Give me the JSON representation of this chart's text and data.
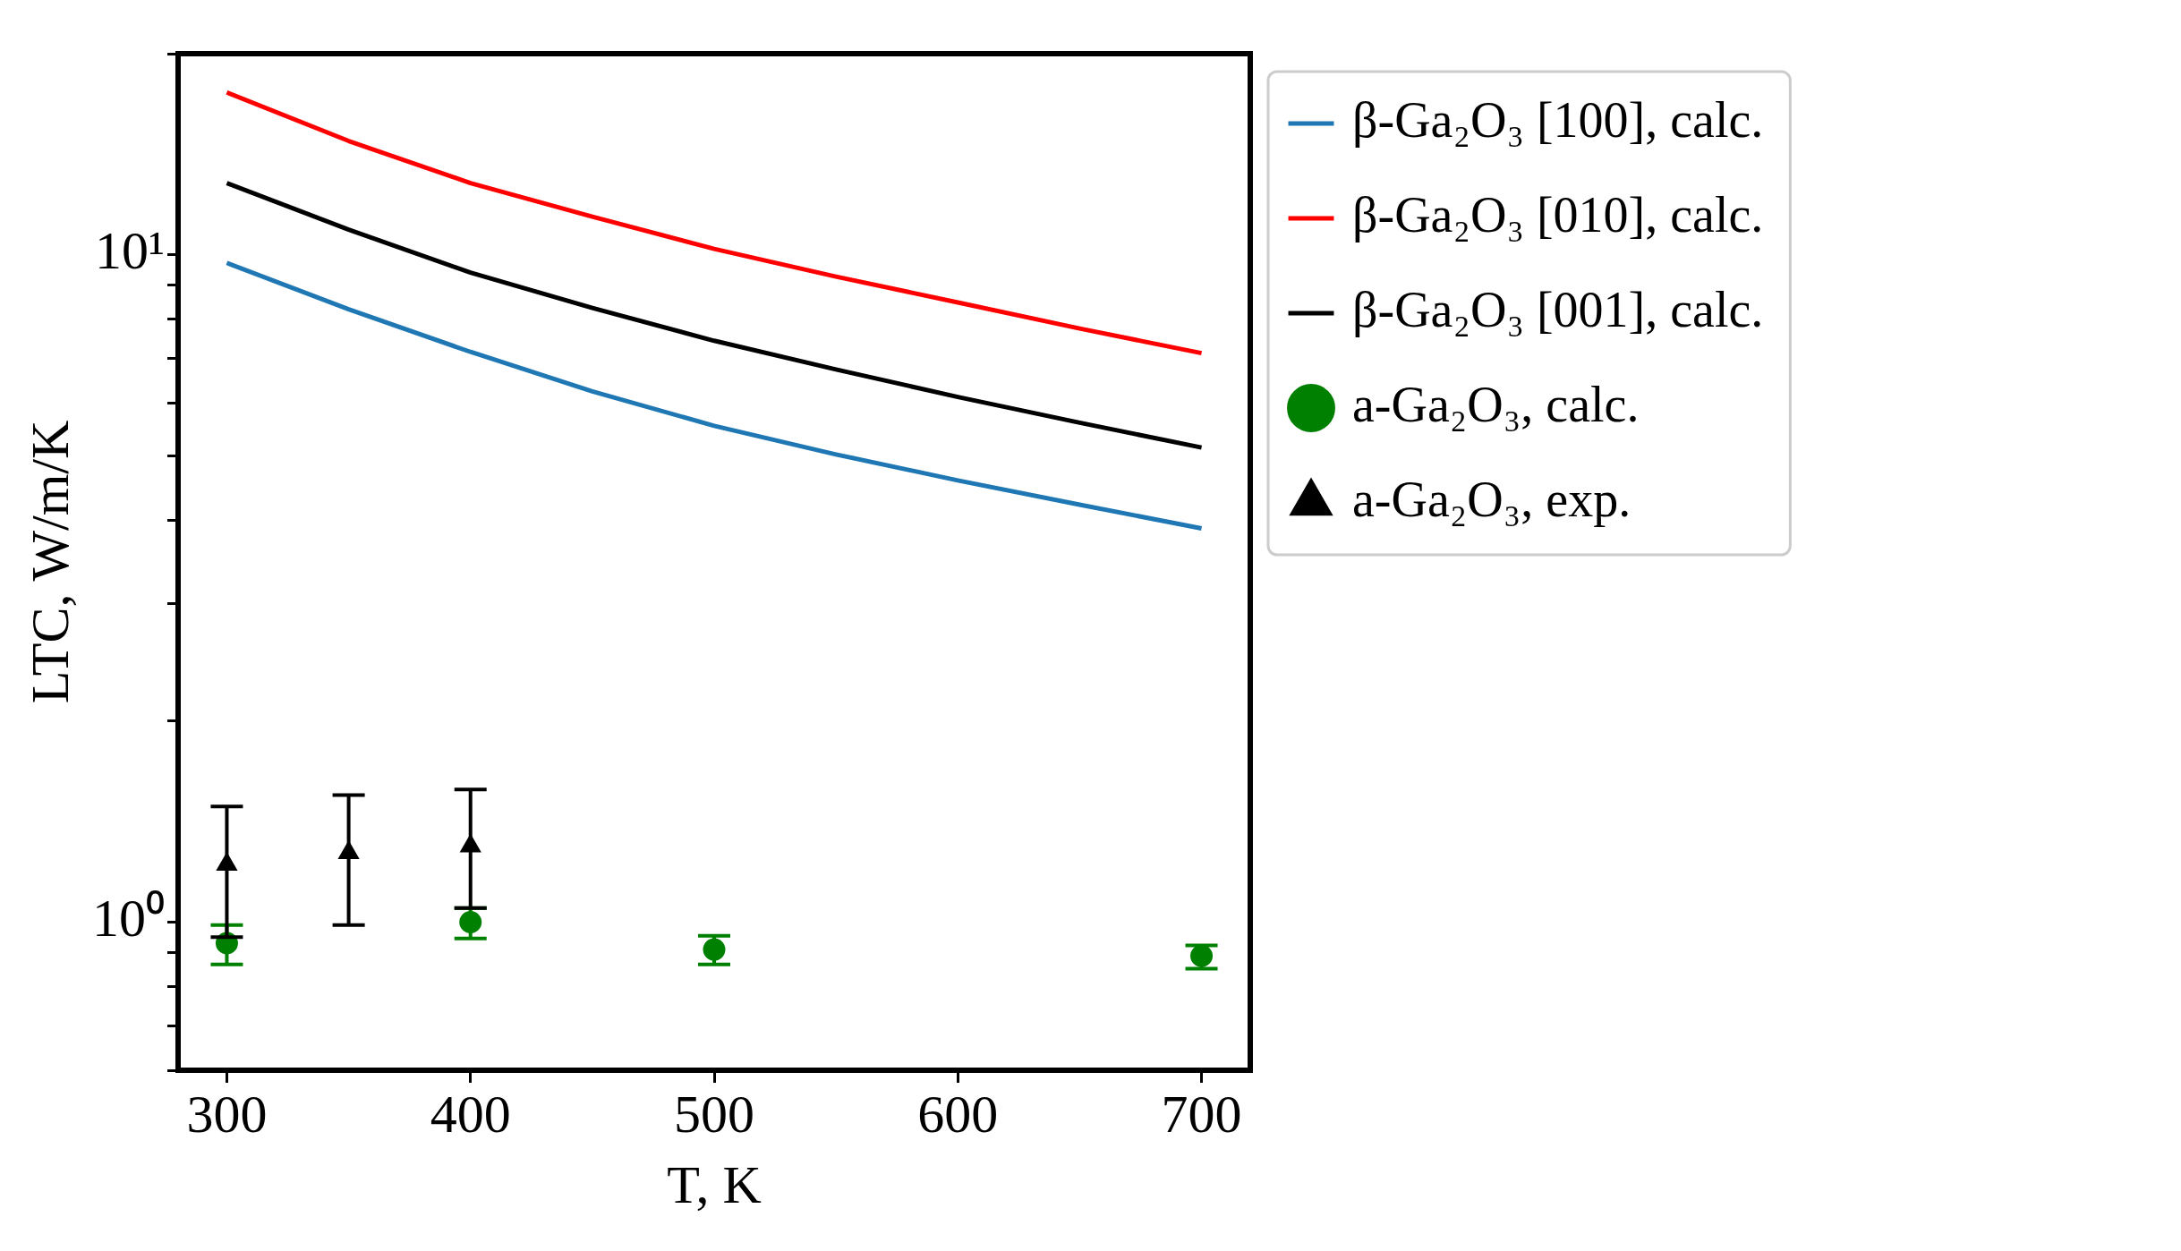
{
  "chart_data": {
    "type": "line",
    "xlabel": "T, K",
    "ylabel": "LTC, W/m/K",
    "log": "y",
    "grid": false,
    "legend": "right",
    "xlim": [
      280,
      720
    ],
    "xticks": [
      300,
      400,
      500,
      600,
      700
    ],
    "ylim": [
      0.6,
      20
    ],
    "yticks": [
      {
        "value": 0.6,
        "label": null
      },
      {
        "value": 0.7,
        "label": null
      },
      {
        "value": 0.8,
        "label": null
      },
      {
        "value": 0.9,
        "label": null
      },
      {
        "value": 1,
        "label": "10⁰"
      },
      {
        "value": 2,
        "label": null
      },
      {
        "value": 3,
        "label": null
      },
      {
        "value": 4,
        "label": null
      },
      {
        "value": 5,
        "label": null
      },
      {
        "value": 6,
        "label": null
      },
      {
        "value": 7,
        "label": null
      },
      {
        "value": 8,
        "label": null
      },
      {
        "value": 9,
        "label": null
      },
      {
        "value": 10,
        "label": "10¹"
      },
      {
        "value": 20,
        "label": null
      }
    ],
    "series": [
      {
        "name": "β-Ga₂O₃ [100], calc.",
        "type": "line",
        "marker": "none",
        "color": "#1f77b4",
        "x": [
          300,
          350,
          400,
          450,
          500,
          550,
          600,
          650,
          700
        ],
        "values": [
          9.72,
          8.28,
          7.15,
          6.24,
          5.54,
          5.02,
          4.59,
          4.22,
          3.89
        ]
      },
      {
        "name": "β-Ga₂O₃ [010], calc.",
        "type": "line",
        "marker": "none",
        "color": "#ff0000",
        "x": [
          300,
          350,
          400,
          450,
          500,
          550,
          600,
          650,
          700
        ],
        "values": [
          17.5,
          14.8,
          12.8,
          11.4,
          10.2,
          9.27,
          8.48,
          7.75,
          7.12
        ]
      },
      {
        "name": "β-Ga₂O₃ [001], calc.",
        "type": "line",
        "marker": "none",
        "color": "#000000",
        "x": [
          300,
          350,
          400,
          450,
          500,
          550,
          600,
          650,
          700
        ],
        "values": [
          12.8,
          10.9,
          9.4,
          8.32,
          7.43,
          6.73,
          6.12,
          5.6,
          5.14
        ]
      },
      {
        "name": "a-Ga₂O₃, calc.",
        "type": "scatter",
        "marker": "circle",
        "color": "#008000",
        "x": [
          300,
          400,
          500,
          700
        ],
        "values": [
          0.93,
          1.0,
          0.91,
          0.89
        ],
        "errors": [
          [
            0.864,
            0.99
          ],
          [
            0.945,
            1.05
          ],
          [
            0.864,
            0.954
          ],
          [
            0.852,
            0.923
          ]
        ]
      },
      {
        "name": "a-Ga₂O₃, exp.",
        "type": "scatter",
        "marker": "triangle",
        "color": "#000000",
        "x": [
          300,
          350,
          400
        ],
        "values": [
          1.22,
          1.27,
          1.3
        ],
        "errors": [
          [
            0.95,
            1.49
          ],
          [
            0.99,
            1.55
          ],
          [
            1.05,
            1.58
          ]
        ]
      }
    ]
  }
}
